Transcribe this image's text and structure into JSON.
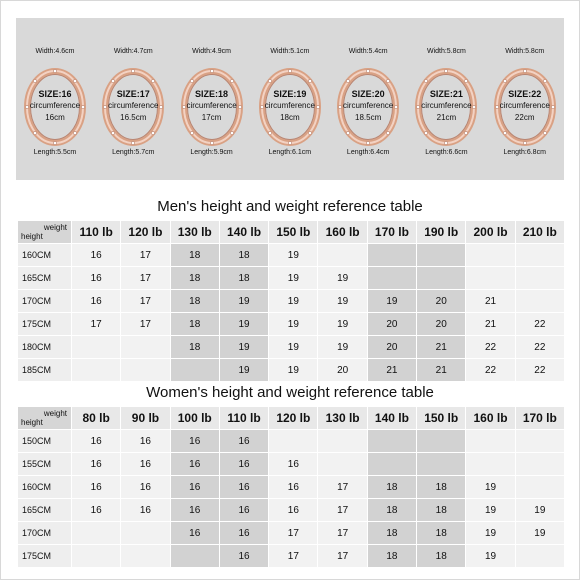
{
  "rings": [
    {
      "width": "Width:4.6cm",
      "size": "SIZE:16",
      "circ_label": "circumference",
      "circ": "16cm",
      "length": "Length:5.5cm"
    },
    {
      "width": "Width:4.7cm",
      "size": "SIZE:17",
      "circ_label": "circumference",
      "circ": "16.5cm",
      "length": "Length:5.7cm"
    },
    {
      "width": "Width:4.9cm",
      "size": "SIZE:18",
      "circ_label": "circumference",
      "circ": "17cm",
      "length": "Length:5.9cm"
    },
    {
      "width": "Width:5.1cm",
      "size": "SIZE:19",
      "circ_label": "circumference",
      "circ": "18cm",
      "length": "Length:6.1cm"
    },
    {
      "width": "Width:5.4cm",
      "size": "SIZE:20",
      "circ_label": "circumference",
      "circ": "18.5cm",
      "length": "Length:6.4cm"
    },
    {
      "width": "Width:5.8cm",
      "size": "SIZE:21",
      "circ_label": "circumference",
      "circ": "21cm",
      "length": "Length:6.6cm"
    },
    {
      "width": "Width:5.8cm",
      "size": "SIZE:22",
      "circ_label": "circumference",
      "circ": "22cm",
      "length": "Length:6.8cm"
    }
  ],
  "men": {
    "title": "Men's height and weight reference table",
    "corner_weight": "weight",
    "corner_height": "height",
    "columns": [
      "110 lb",
      "120 lb",
      "130 lb",
      "140 lb",
      "150 lb",
      "160 lb",
      "170 lb",
      "190 lb",
      "200 lb",
      "210 lb"
    ],
    "rows": [
      {
        "label": "160CM",
        "cells": [
          "16",
          "17",
          "18",
          "18",
          "19",
          "",
          "",
          "",
          "",
          ""
        ]
      },
      {
        "label": "165CM",
        "cells": [
          "16",
          "17",
          "18",
          "18",
          "19",
          "19",
          "",
          "",
          "",
          ""
        ]
      },
      {
        "label": "170CM",
        "cells": [
          "16",
          "17",
          "18",
          "19",
          "19",
          "19",
          "19",
          "20",
          "21",
          ""
        ]
      },
      {
        "label": "175CM",
        "cells": [
          "17",
          "17",
          "18",
          "19",
          "19",
          "19",
          "20",
          "20",
          "21",
          "22"
        ]
      },
      {
        "label": "180CM",
        "cells": [
          "",
          "",
          "18",
          "19",
          "19",
          "19",
          "20",
          "21",
          "22",
          "22"
        ]
      },
      {
        "label": "185CM",
        "cells": [
          "",
          "",
          "",
          "19",
          "19",
          "20",
          "21",
          "21",
          "22",
          "22"
        ]
      }
    ]
  },
  "women": {
    "title": "Women's height and weight reference table",
    "corner_weight": "weight",
    "corner_height": "height",
    "columns": [
      "80 lb",
      "90 lb",
      "100 lb",
      "110 lb",
      "120 lb",
      "130 lb",
      "140 lb",
      "150 lb",
      "160 lb",
      "170 lb"
    ],
    "rows": [
      {
        "label": "150CM",
        "cells": [
          "16",
          "16",
          "16",
          "16",
          "",
          "",
          "",
          "",
          "",
          ""
        ]
      },
      {
        "label": "155CM",
        "cells": [
          "16",
          "16",
          "16",
          "16",
          "16",
          "",
          "",
          "",
          "",
          ""
        ]
      },
      {
        "label": "160CM",
        "cells": [
          "16",
          "16",
          "16",
          "16",
          "16",
          "17",
          "18",
          "18",
          "19",
          ""
        ]
      },
      {
        "label": "165CM",
        "cells": [
          "16",
          "16",
          "16",
          "16",
          "16",
          "17",
          "18",
          "18",
          "19",
          "19"
        ]
      },
      {
        "label": "170CM",
        "cells": [
          "",
          "",
          "16",
          "16",
          "17",
          "17",
          "18",
          "18",
          "19",
          "19"
        ]
      },
      {
        "label": "175CM",
        "cells": [
          "",
          "",
          "",
          "16",
          "17",
          "17",
          "18",
          "18",
          "19",
          ""
        ]
      }
    ]
  },
  "colors": {
    "ring_gold": "#d9a184",
    "ring_inner": "#f3d2c3",
    "panel": "#d9d9d9",
    "shade": "#d2d2d2",
    "cell": "#f2f2f2"
  }
}
